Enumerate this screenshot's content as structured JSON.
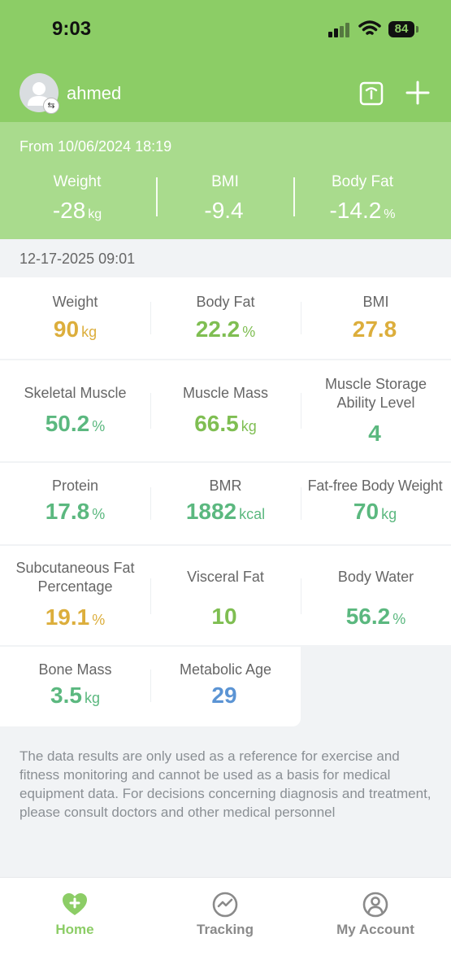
{
  "status_bar": {
    "time": "9:03",
    "battery": "84"
  },
  "header": {
    "username": "ahmed"
  },
  "summary": {
    "from_text": "From 10/06/2024 18:19",
    "items": [
      {
        "label": "Weight",
        "value": "-28",
        "unit": "kg"
      },
      {
        "label": "BMI",
        "value": "-9.4",
        "unit": ""
      },
      {
        "label": "Body Fat",
        "value": "-14.2",
        "unit": "%"
      }
    ]
  },
  "record_date": "12-17-2025 09:01",
  "metrics": [
    {
      "label": "Weight",
      "value": "90",
      "unit": "kg",
      "color": "#dcae3c"
    },
    {
      "label": "Body Fat",
      "value": "22.2",
      "unit": "%",
      "color": "#7fbe52"
    },
    {
      "label": "BMI",
      "value": "27.8",
      "unit": "",
      "color": "#dcae3c"
    },
    {
      "label": "Skeletal Muscle",
      "value": "50.2",
      "unit": "%",
      "color": "#5bb87f"
    },
    {
      "label": "Muscle Mass",
      "value": "66.5",
      "unit": "kg",
      "color": "#7fbe52"
    },
    {
      "label": "Muscle Storage Ability Level",
      "value": "4",
      "unit": "",
      "color": "#5bb87f"
    },
    {
      "label": "Protein",
      "value": "17.8",
      "unit": "%",
      "color": "#5bb87f"
    },
    {
      "label": "BMR",
      "value": "1882",
      "unit": "kcal",
      "color": "#5bb87f"
    },
    {
      "label": "Fat-free Body Weight",
      "value": "70",
      "unit": "kg",
      "color": "#5bb87f"
    },
    {
      "label": "Subcutaneous Fat Percentage",
      "value": "19.1",
      "unit": "%",
      "color": "#dcae3c"
    },
    {
      "label": "Visceral Fat",
      "value": "10",
      "unit": "",
      "color": "#7fbe52"
    },
    {
      "label": "Body Water",
      "value": "56.2",
      "unit": "%",
      "color": "#5bb87f"
    },
    {
      "label": "Bone Mass",
      "value": "3.5",
      "unit": "kg",
      "color": "#5bb87f"
    },
    {
      "label": "Metabolic Age",
      "value": "29",
      "unit": "",
      "color": "#5b94d4"
    }
  ],
  "disclaimer": "The data results are only used as a reference for exercise and fitness monitoring and cannot be used as a basis for medical equipment data. For decisions concerning diagnosis and treatment, please consult doctors and other medical personnel",
  "tabs": [
    {
      "label": "Home",
      "icon": "heart-plus-icon",
      "active": true
    },
    {
      "label": "Tracking",
      "icon": "pulse-circle-icon",
      "active": false
    },
    {
      "label": "My Account",
      "icon": "person-circle-icon",
      "active": false
    }
  ],
  "colors": {
    "brand_green": "#8ccd66",
    "summary_green": "#a9db8d",
    "tab_inactive": "#8a8a8a"
  }
}
